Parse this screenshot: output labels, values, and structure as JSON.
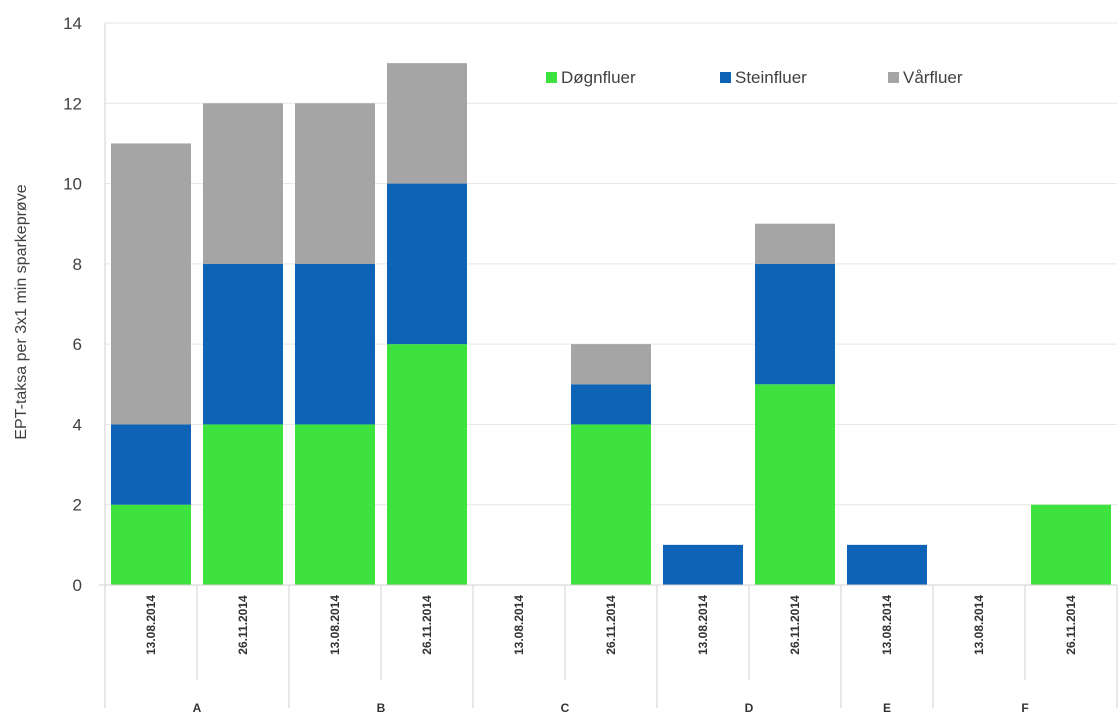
{
  "chart_data": {
    "type": "bar",
    "stacked": true,
    "ylabel": "EPT-taksa per 3x1 min sparkeprøve",
    "xlabel": "",
    "ylim": [
      0,
      14
    ],
    "yticks": [
      0,
      2,
      4,
      6,
      8,
      10,
      12,
      14
    ],
    "grid": true,
    "legend_position": "top-right",
    "groups": [
      {
        "label": "A",
        "dates": [
          "13.08.2014",
          "26.11.2014"
        ]
      },
      {
        "label": "B",
        "dates": [
          "13.08.2014",
          "26.11.2014"
        ]
      },
      {
        "label": "C",
        "dates": [
          "13.08.2014",
          "26.11.2014"
        ]
      },
      {
        "label": "D",
        "dates": [
          "13.08.2014",
          "26.11.2014"
        ]
      },
      {
        "label": "E",
        "dates": [
          "13.08.2014"
        ]
      },
      {
        "label": "F",
        "dates": [
          "13.08.2014",
          "26.11.2014"
        ]
      }
    ],
    "categories": [
      "13.08.2014",
      "26.11.2014",
      "13.08.2014",
      "26.11.2014",
      "13.08.2014",
      "26.11.2014",
      "13.08.2014",
      "26.11.2014",
      "13.08.2014",
      "13.08.2014",
      "26.11.2014"
    ],
    "series": [
      {
        "name": "Døgnfluer",
        "color": "#3ee23e",
        "values": [
          2,
          4,
          4,
          6,
          0,
          4,
          0,
          5,
          0,
          0,
          2
        ]
      },
      {
        "name": "Steinfluer",
        "color": "#0f63b7",
        "values": [
          2,
          4,
          4,
          4,
          0,
          1,
          1,
          3,
          1,
          0,
          0
        ]
      },
      {
        "name": "Vårfluer",
        "color": "#a5a5a5",
        "values": [
          7,
          4,
          4,
          3,
          0,
          1,
          0,
          1,
          0,
          0,
          0
        ]
      }
    ]
  }
}
